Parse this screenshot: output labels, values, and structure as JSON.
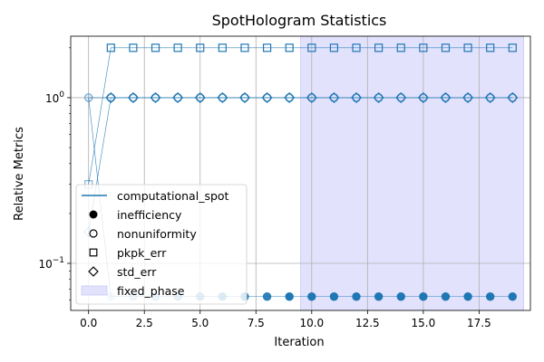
{
  "chart_data": {
    "type": "scatter",
    "title": "SpotHologram Statistics",
    "xlabel": "Iteration",
    "ylabel": "Relative Metrics",
    "xlim": [
      -0.8,
      19.8
    ],
    "ylim": [
      0.052,
      2.35
    ],
    "yscale": "log",
    "grid": true,
    "legend_placement": "lower-left",
    "x_ticks": [
      {
        "value": 0,
        "label": "0.0"
      },
      {
        "value": 2.5,
        "label": "2.5"
      },
      {
        "value": 5,
        "label": "5.0"
      },
      {
        "value": 7.5,
        "label": "7.5"
      },
      {
        "value": 10,
        "label": "10.0"
      },
      {
        "value": 12.5,
        "label": "12.5"
      },
      {
        "value": 15,
        "label": "15.0"
      },
      {
        "value": 17.5,
        "label": "17.5"
      }
    ],
    "y_ticks": [
      {
        "value": 1,
        "base": "10",
        "exp": "0"
      },
      {
        "value": 0.1,
        "base": "10",
        "exp": "−1"
      }
    ],
    "shaded_region": {
      "name": "fixed_phase",
      "x": [
        9.5,
        19.5
      ],
      "color": "#e2e2fd"
    },
    "x": [
      0,
      1,
      2,
      3,
      4,
      5,
      6,
      7,
      8,
      9,
      10,
      11,
      12,
      13,
      14,
      15,
      16,
      17,
      18,
      19
    ],
    "series": [
      {
        "name": "inefficiency",
        "marker": "circle-filled",
        "values": [
          1.0,
          0.063,
          0.063,
          0.063,
          0.063,
          0.063,
          0.063,
          0.063,
          0.063,
          0.063,
          0.063,
          0.063,
          0.063,
          0.063,
          0.063,
          0.063,
          0.063,
          0.063,
          0.063,
          0.063
        ]
      },
      {
        "name": "nonuniformity",
        "marker": "circle-open",
        "values": [
          1.0,
          1.0,
          1.0,
          1.0,
          1.0,
          1.0,
          1.0,
          1.0,
          1.0,
          1.0,
          1.0,
          1.0,
          1.0,
          1.0,
          1.0,
          1.0,
          1.0,
          1.0,
          1.0,
          1.0
        ]
      },
      {
        "name": "pkpk_err",
        "marker": "square-open",
        "values": [
          0.3,
          2.0,
          2.0,
          2.0,
          2.0,
          2.0,
          2.0,
          2.0,
          2.0,
          2.0,
          2.0,
          2.0,
          2.0,
          2.0,
          2.0,
          2.0,
          2.0,
          2.0,
          2.0,
          2.0
        ]
      },
      {
        "name": "std_err",
        "marker": "diamond-open",
        "values": [
          0.155,
          1.0,
          1.0,
          1.0,
          1.0,
          1.0,
          1.0,
          1.0,
          1.0,
          1.0,
          1.0,
          1.0,
          1.0,
          1.0,
          1.0,
          1.0,
          1.0,
          1.0,
          1.0,
          1.0
        ]
      }
    ],
    "legend": [
      {
        "label": "computational_spot",
        "symbol": "line"
      },
      {
        "label": "inefficiency",
        "symbol": "circle-filled"
      },
      {
        "label": "nonuniformity",
        "symbol": "circle-open"
      },
      {
        "label": "pkpk_err",
        "symbol": "square-open"
      },
      {
        "label": "std_err",
        "symbol": "diamond-open"
      },
      {
        "label": "fixed_phase",
        "symbol": "patch"
      }
    ],
    "colors": {
      "series": "#1f77b4",
      "legend_line": "#1f77b4",
      "patch": "#e2e2fd",
      "grid": "#b0b0b0"
    }
  }
}
